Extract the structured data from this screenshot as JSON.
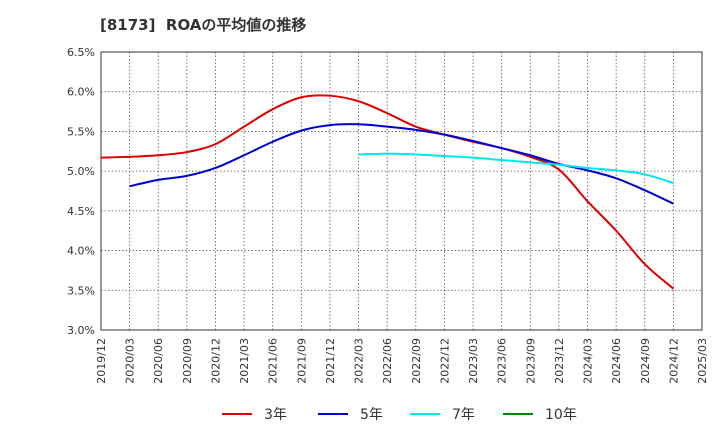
{
  "chart_data": {
    "type": "line",
    "title": "[8173]  ROAの平均値の推移",
    "xlabel": "",
    "ylabel": "",
    "categories": [
      "2019/12",
      "2020/03",
      "2020/06",
      "2020/09",
      "2020/12",
      "2021/03",
      "2021/06",
      "2021/09",
      "2021/12",
      "2022/03",
      "2022/06",
      "2022/09",
      "2022/12",
      "2023/03",
      "2023/06",
      "2023/09",
      "2023/12",
      "2024/03",
      "2024/06",
      "2024/09",
      "2024/12",
      "2025/03"
    ],
    "y_ticks": [
      "3.0%",
      "3.5%",
      "4.0%",
      "4.5%",
      "5.0%",
      "5.5%",
      "6.0%",
      "6.5%"
    ],
    "ylim": [
      3.0,
      6.5
    ],
    "grid": true,
    "legend_position": "bottom",
    "series": [
      {
        "name": "3年",
        "color": "#dd0000",
        "values": [
          5.17,
          5.18,
          5.2,
          5.24,
          5.34,
          5.56,
          5.78,
          5.93,
          5.95,
          5.88,
          5.73,
          5.56,
          5.46,
          5.37,
          5.29,
          5.18,
          5.02,
          4.62,
          4.25,
          3.83,
          3.52,
          null
        ]
      },
      {
        "name": "5年",
        "color": "#0000cc",
        "values": [
          null,
          4.81,
          4.89,
          4.94,
          5.04,
          5.2,
          5.37,
          5.51,
          5.58,
          5.59,
          5.56,
          5.52,
          5.46,
          5.38,
          5.29,
          5.2,
          5.09,
          5.01,
          4.91,
          4.76,
          4.59,
          null
        ]
      },
      {
        "name": "7年",
        "color": "#00e5ee",
        "values": [
          null,
          null,
          null,
          null,
          null,
          null,
          null,
          null,
          null,
          5.21,
          5.22,
          5.21,
          5.19,
          5.17,
          5.14,
          5.11,
          5.08,
          5.04,
          5.01,
          4.96,
          4.85,
          null
        ]
      },
      {
        "name": "10年",
        "color": "#008800",
        "values": [
          null,
          null,
          null,
          null,
          null,
          null,
          null,
          null,
          null,
          null,
          null,
          null,
          null,
          null,
          null,
          null,
          null,
          null,
          null,
          null,
          null,
          null
        ]
      }
    ]
  }
}
